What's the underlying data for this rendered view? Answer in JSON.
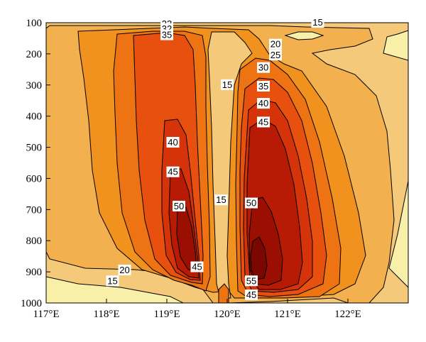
{
  "chart_data": {
    "type": "heatmap",
    "subtype": "filled-contour",
    "title": "",
    "xlabel": "",
    "ylabel": "",
    "x_ticks": [
      "117°E",
      "118°E",
      "119°E",
      "120°E",
      "121°E",
      "122°E"
    ],
    "x_tick_values": [
      117,
      118,
      119,
      120,
      121,
      122
    ],
    "y_ticks": [
      "100",
      "200",
      "300",
      "400",
      "500",
      "600",
      "700",
      "800",
      "900",
      "1000"
    ],
    "y_tick_values": [
      100,
      200,
      300,
      400,
      500,
      600,
      700,
      800,
      900,
      1000
    ],
    "xlim": [
      117,
      123
    ],
    "ylim": [
      1000,
      100
    ],
    "y_inverted": true,
    "levels": [
      15,
      20,
      25,
      30,
      35,
      40,
      45,
      50,
      55
    ],
    "colors": [
      "#f8f0a8",
      "#f5c97a",
      "#f2b04f",
      "#f1921f",
      "#ee7413",
      "#e8500f",
      "#d5330a",
      "#b81b05",
      "#9a0f02",
      "#7a0800"
    ],
    "contour_labels": [
      {
        "text": "15",
        "x": 121.5,
        "y": 100
      },
      {
        "text": "33",
        "x": 119.0,
        "y": 105
      },
      {
        "text": "32",
        "x": 119.0,
        "y": 120
      },
      {
        "text": "35",
        "x": 119.0,
        "y": 140
      },
      {
        "text": "20",
        "x": 120.8,
        "y": 170
      },
      {
        "text": "25",
        "x": 120.8,
        "y": 205
      },
      {
        "text": "30",
        "x": 120.6,
        "y": 245
      },
      {
        "text": "15",
        "x": 120.0,
        "y": 300
      },
      {
        "text": "35",
        "x": 120.6,
        "y": 305
      },
      {
        "text": "40",
        "x": 120.6,
        "y": 360
      },
      {
        "text": "45",
        "x": 120.6,
        "y": 420
      },
      {
        "text": "40",
        "x": 119.1,
        "y": 485
      },
      {
        "text": "45",
        "x": 119.1,
        "y": 580
      },
      {
        "text": "15",
        "x": 119.9,
        "y": 670
      },
      {
        "text": "50",
        "x": 119.2,
        "y": 690
      },
      {
        "text": "50",
        "x": 120.4,
        "y": 680
      },
      {
        "text": "45",
        "x": 119.5,
        "y": 885
      },
      {
        "text": "20",
        "x": 118.3,
        "y": 895
      },
      {
        "text": "15",
        "x": 118.1,
        "y": 930
      },
      {
        "text": "55",
        "x": 120.4,
        "y": 930
      },
      {
        "text": "45",
        "x": 120.4,
        "y": 975
      }
    ]
  }
}
